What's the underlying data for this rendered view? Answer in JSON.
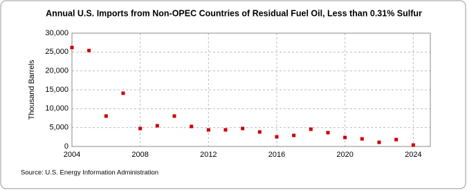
{
  "chart_data": {
    "type": "scatter",
    "title": "Annual U.S. Imports from Non-OPEC Countries of Residual Fuel Oil, Less than 0.31% Sulfur",
    "y_label": "Thousand Barrels",
    "source": "Source: U.S. Energy Information Administration",
    "x": [
      2004,
      2005,
      2006,
      2007,
      2008,
      2009,
      2010,
      2011,
      2012,
      2013,
      2014,
      2015,
      2016,
      2017,
      2018,
      2019,
      2020,
      2021,
      2022,
      2023,
      2024
    ],
    "values": [
      26200,
      25400,
      8050,
      14100,
      4760,
      5490,
      8050,
      5300,
      4390,
      4400,
      4760,
      3840,
      2560,
      2930,
      4570,
      3660,
      2380,
      2010,
      1100,
      1830,
      370
    ],
    "color": "#cc0000",
    "xlim": [
      2004,
      2025
    ],
    "xticks": [
      2004,
      2008,
      2012,
      2016,
      2020,
      2024
    ],
    "ylim": [
      0,
      30000
    ],
    "yticks": [
      0,
      {
        "value": 5000,
        "label": "5,000"
      },
      {
        "value": 10000,
        "label": "10,000"
      },
      {
        "value": 15000,
        "label": "15,000"
      },
      {
        "value": 20000,
        "label": "20,000"
      },
      {
        "value": 25000,
        "label": "25,000"
      },
      {
        "value": 30000,
        "label": "30,000"
      }
    ],
    "grid": true
  }
}
